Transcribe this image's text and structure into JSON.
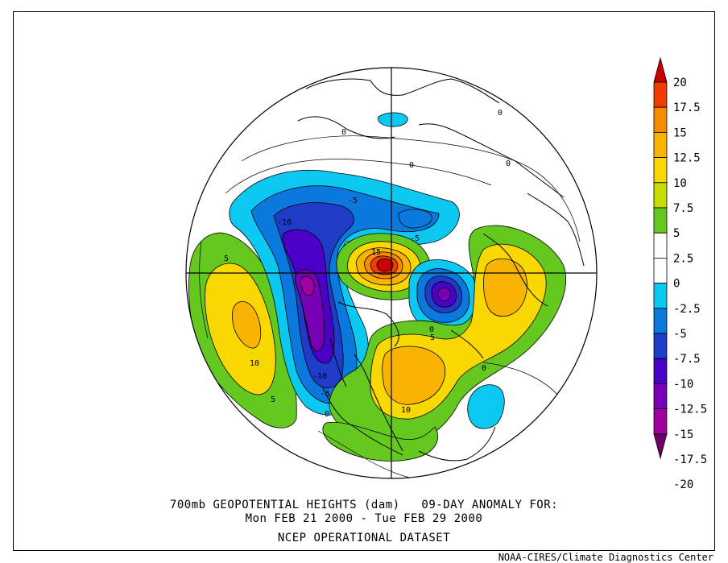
{
  "title": {
    "line1": "700mb GEOPOTENTIAL HEIGHTS (dam)   09-DAY ANOMALY FOR:",
    "line2": "Mon FEB 21 2000 - Tue FEB 29 2000",
    "line3": "NCEP OPERATIONAL DATASET"
  },
  "credit": "NOAA-CIRES/Climate Diagnostics Center",
  "colorbar": {
    "labels": [
      "20",
      "17.5",
      "15",
      "12.5",
      "10",
      "7.5",
      "5",
      "2.5",
      "0",
      "-2.5",
      "-5",
      "-7.5",
      "-10",
      "-12.5",
      "-15",
      "-17.5",
      "-20"
    ],
    "colors": [
      "#c80000",
      "#f03c00",
      "#f88c00",
      "#f8b400",
      "#f8d800",
      "#c8dc00",
      "#64c81e",
      "#ffffff",
      "#ffffff",
      "#0ac8f0",
      "#0a78dc",
      "#1e3cc8",
      "#4b00c8",
      "#7800b4",
      "#a000a0",
      "#6e006e"
    ]
  },
  "contour_labels": [
    {
      "text": "0"
    },
    {
      "text": "0"
    },
    {
      "text": "0"
    },
    {
      "text": "0"
    },
    {
      "text": "-5"
    },
    {
      "text": "-10"
    },
    {
      "text": "15"
    },
    {
      "text": "-5"
    },
    {
      "text": "5"
    },
    {
      "text": "10"
    },
    {
      "text": "5"
    },
    {
      "text": "-10"
    },
    {
      "text": "-5"
    },
    {
      "text": "0"
    },
    {
      "text": "0"
    },
    {
      "text": "5"
    },
    {
      "text": "10"
    },
    {
      "text": "0"
    }
  ]
}
